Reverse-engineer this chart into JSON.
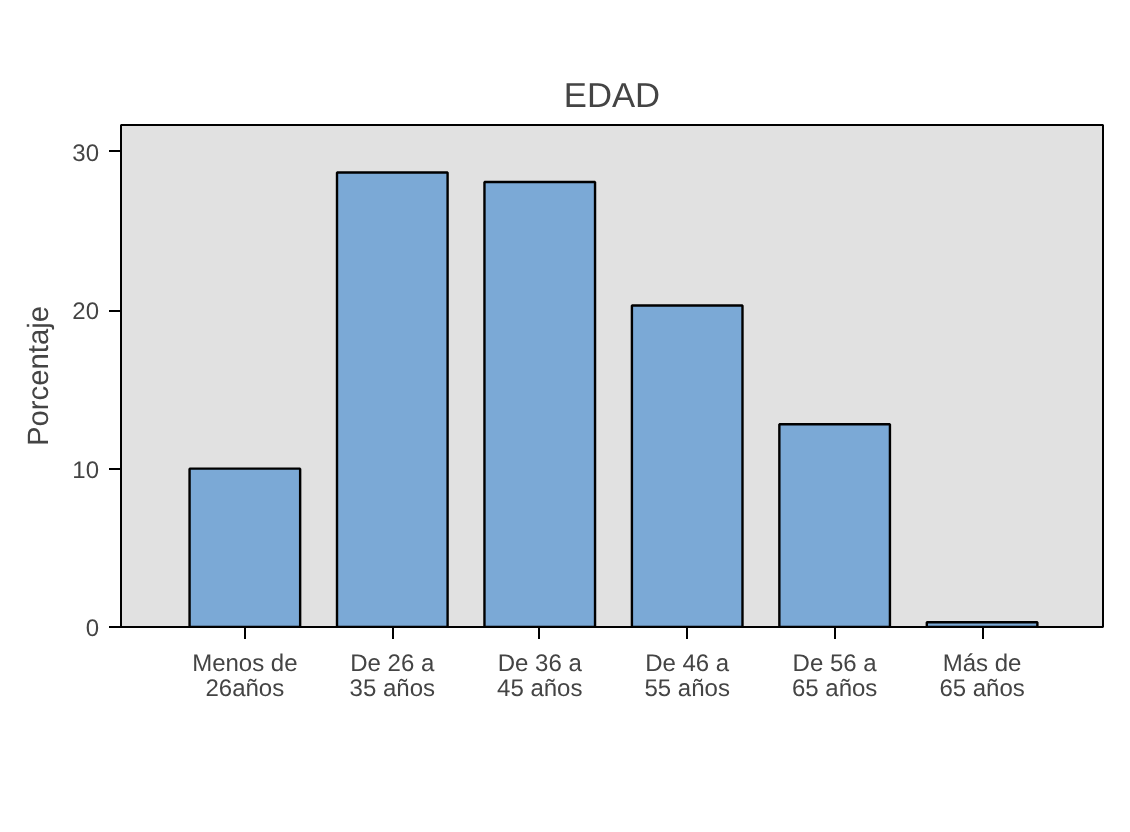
{
  "chart_data": {
    "type": "bar",
    "title": "EDAD",
    "ylabel": "Porcentaje",
    "categories": [
      "Menos de\n26años",
      "De 26 a\n35 años",
      "De 36 a\n45 años",
      "De 46 a\n55 años",
      "De 56 a\n65 años",
      "Más de\n65 años"
    ],
    "values": [
      10.0,
      28.7,
      28.1,
      20.3,
      12.8,
      0.3
    ],
    "color": "#7ba9d6",
    "ylim": [
      0,
      31.7
    ],
    "yticks": [
      0,
      10,
      20,
      30
    ],
    "grid": false
  }
}
